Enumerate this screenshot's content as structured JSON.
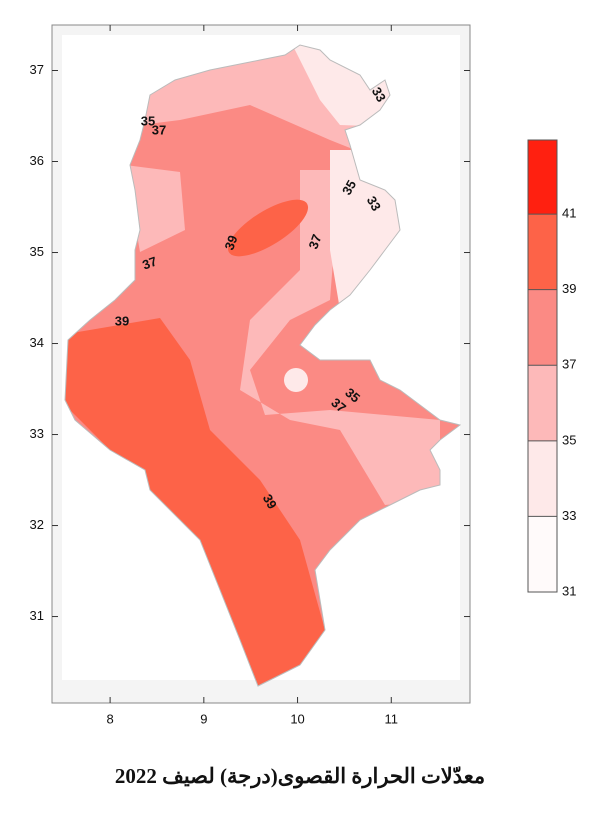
{
  "map": {
    "title": "معدّلات الحرارة القصوى(درجة) لصيف 2022",
    "xlim": [
      7.38,
      11.84
    ],
    "ylim": [
      30.05,
      37.5
    ],
    "xticks": [
      8,
      9,
      10,
      11
    ],
    "yticks": [
      31,
      32,
      33,
      34,
      35,
      36,
      37
    ],
    "legend": {
      "lim": [
        31,
        42.96
      ],
      "levels": [
        31,
        33,
        35,
        37,
        39,
        41
      ],
      "colors": [
        "#fffafa",
        "#fee9e9",
        "#fdb9b9",
        "#fb8a84",
        "#fd6348",
        "#ff2010"
      ]
    },
    "contour_labels": [
      "33",
      "35",
      "37",
      "35",
      "33",
      "39",
      "37",
      "37",
      "39",
      "35",
      "37",
      "39"
    ]
  }
}
